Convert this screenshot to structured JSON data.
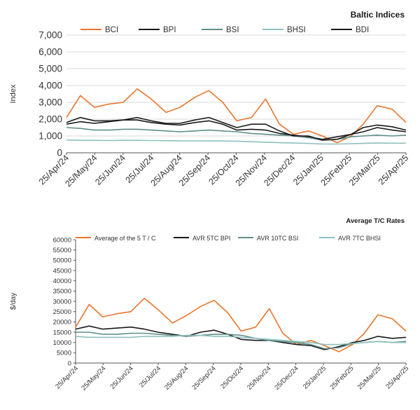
{
  "chart_data": [
    {
      "type": "line",
      "title": "Baltic Indices",
      "ylabel": "Index",
      "xlabel": "",
      "ylim": [
        0,
        7000
      ],
      "yticks": [
        "0",
        "1,000",
        "2,000",
        "3,000",
        "4,000",
        "5,000",
        "6,000",
        "7,000"
      ],
      "grid": "horizontal",
      "legend": "top",
      "x_tick_labels": [
        "25/Apr/24",
        "25/May/24",
        "25/Jun/24",
        "25/Jul/24",
        "25/Aug/24",
        "25/Sep/24",
        "25/Oct/24",
        "25/Nov/24",
        "25/Dec/24",
        "25/Jan/25",
        "25/Feb/25",
        "25/Mar/25",
        "25/Apr/25"
      ],
      "x_dates": [
        "2024-04-25",
        "2024-05-10",
        "2024-05-25",
        "2024-06-10",
        "2024-06-25",
        "2024-07-10",
        "2024-07-25",
        "2024-08-10",
        "2024-08-25",
        "2024-09-10",
        "2024-09-25",
        "2024-10-10",
        "2024-10-25",
        "2024-11-10",
        "2024-11-25",
        "2024-12-10",
        "2024-12-25",
        "2025-01-10",
        "2025-01-25",
        "2025-02-10",
        "2025-02-25",
        "2025-03-10",
        "2025-03-25",
        "2025-04-10",
        "2025-04-25"
      ],
      "series": [
        {
          "name": "BCI",
          "color": "#e8762d",
          "values": [
            2100,
            3400,
            2700,
            2900,
            3000,
            3800,
            3200,
            2400,
            2700,
            3300,
            3700,
            3000,
            1900,
            2100,
            3200,
            1700,
            1100,
            1300,
            1000,
            600,
            1000,
            1700,
            2800,
            2600,
            1800
          ]
        },
        {
          "name": "BPI",
          "color": "#1a1a1a",
          "values": [
            1800,
            2100,
            1900,
            1900,
            1950,
            1950,
            1800,
            1700,
            1650,
            1800,
            1900,
            1700,
            1350,
            1400,
            1350,
            1150,
            1050,
            950,
            800,
            950,
            1100,
            1250,
            1500,
            1350,
            1250
          ]
        },
        {
          "name": "BSI",
          "color": "#5f8f8a",
          "values": [
            1500,
            1450,
            1350,
            1350,
            1400,
            1400,
            1350,
            1300,
            1250,
            1300,
            1350,
            1300,
            1250,
            1150,
            1100,
            1050,
            1000,
            900,
            750,
            800,
            950,
            1000,
            1050,
            1000,
            1050
          ]
        },
        {
          "name": "BHSI",
          "color": "#8fbfbf",
          "values": [
            760,
            740,
            740,
            730,
            740,
            740,
            730,
            720,
            710,
            710,
            700,
            700,
            690,
            660,
            630,
            600,
            580,
            560,
            520,
            520,
            540,
            560,
            580,
            570,
            570
          ]
        },
        {
          "name": "BDI",
          "color": "#1a1a1a",
          "values": [
            1700,
            1850,
            1750,
            1850,
            1950,
            2100,
            1900,
            1750,
            1750,
            1950,
            2100,
            1800,
            1500,
            1700,
            1700,
            1300,
            1000,
            1000,
            750,
            800,
            1100,
            1500,
            1650,
            1550,
            1350
          ]
        }
      ]
    },
    {
      "type": "line",
      "title": "Average T/C Rates",
      "ylabel": "$/day",
      "xlabel": "",
      "ylim": [
        0,
        60000
      ],
      "yticks": [
        "0",
        "5000",
        "10000",
        "15000",
        "20000",
        "25000",
        "30000",
        "35000",
        "40000",
        "45000",
        "50000",
        "55000",
        "60000"
      ],
      "grid": "none",
      "legend": "top",
      "x_tick_labels": [
        "25/Apr/24",
        "25/May/24",
        "25/Jun/24",
        "25/Jul/24",
        "25/Aug/24",
        "25/Sep/24",
        "25/Oct/24",
        "25/Nov/24",
        "25/Dec/24",
        "25/Jan/25",
        "25/Feb/25",
        "25/Mar/25",
        "25/Apr/25"
      ],
      "x_dates": [
        "2024-04-25",
        "2024-05-10",
        "2024-05-25",
        "2024-06-10",
        "2024-06-25",
        "2024-07-10",
        "2024-07-25",
        "2024-08-10",
        "2024-08-25",
        "2024-09-10",
        "2024-09-25",
        "2024-10-10",
        "2024-10-25",
        "2024-11-10",
        "2024-11-25",
        "2024-12-10",
        "2024-12-25",
        "2025-01-10",
        "2025-01-25",
        "2025-02-10",
        "2025-02-25",
        "2025-03-10",
        "2025-03-25",
        "2025-04-10",
        "2025-04-25"
      ],
      "series": [
        {
          "name": "Average of the 5 T / C",
          "color": "#e8762d",
          "values": [
            17500,
            28500,
            22500,
            24000,
            25000,
            31500,
            26000,
            19500,
            23000,
            27500,
            30500,
            24500,
            15500,
            17500,
            26500,
            14500,
            9000,
            11000,
            8500,
            5500,
            9000,
            14500,
            23500,
            21500,
            15500
          ]
        },
        {
          "name": "AVR 5TC BPI",
          "color": "#1a1a1a",
          "values": [
            16500,
            18000,
            16500,
            17000,
            17500,
            16500,
            15000,
            14000,
            13000,
            15000,
            16000,
            14000,
            11500,
            11000,
            11000,
            10000,
            9000,
            8500,
            6500,
            8000,
            10000,
            11000,
            13000,
            12000,
            12500
          ]
        },
        {
          "name": "AVR 10TC BSI",
          "color": "#5f8f8a",
          "values": [
            15000,
            15000,
            14000,
            14000,
            14500,
            14500,
            14000,
            13500,
            13000,
            13500,
            14000,
            14000,
            13500,
            12000,
            11000,
            10500,
            10000,
            9000,
            7000,
            7500,
            9500,
            10000,
            10500,
            10000,
            10500
          ]
        },
        {
          "name": "AVR 7TC BHSI",
          "color": "#8fbfbf",
          "values": [
            13000,
            12500,
            12500,
            12500,
            12500,
            13000,
            13000,
            13000,
            13500,
            13500,
            13000,
            13000,
            12500,
            12000,
            11500,
            11000,
            10500,
            10000,
            9000,
            9000,
            9500,
            10000,
            10500,
            10000,
            10000
          ]
        }
      ]
    }
  ]
}
